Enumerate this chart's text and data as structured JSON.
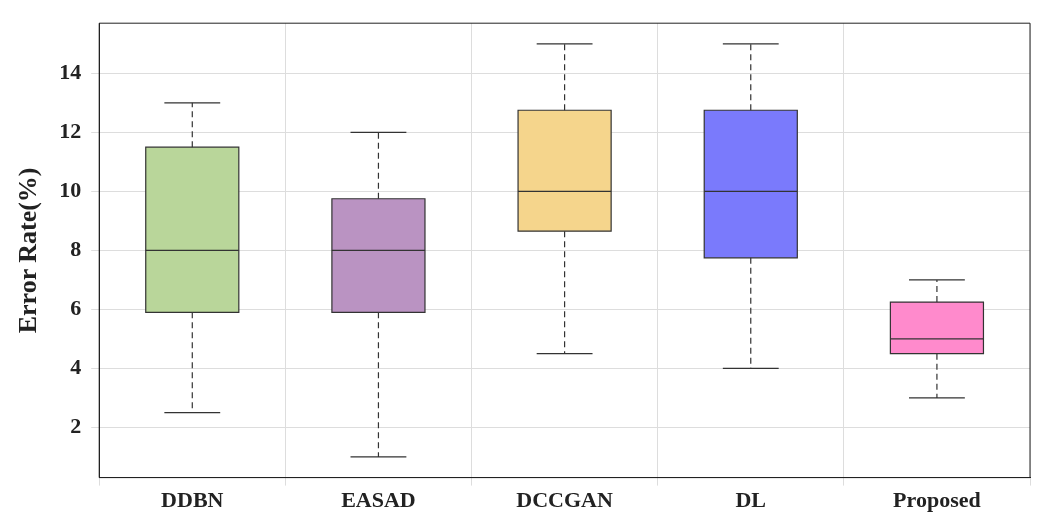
{
  "chart_data": {
    "type": "box",
    "ylabel": "Error Rate(%)",
    "categories": [
      "DDBN",
      "EASAD",
      "DCCGAN",
      "DL",
      "Proposed"
    ],
    "boxes": [
      {
        "low": 2.5,
        "q1": 5.9,
        "median": 8,
        "q3": 11.5,
        "high": 13
      },
      {
        "low": 1,
        "q1": 5.9,
        "median": 8,
        "q3": 9.75,
        "high": 12
      },
      {
        "low": 4.5,
        "q1": 8.65,
        "median": 10,
        "q3": 12.75,
        "high": 15
      },
      {
        "low": 4,
        "q1": 7.75,
        "median": 10,
        "q3": 12.75,
        "high": 15
      },
      {
        "low": 3,
        "q1": 4.5,
        "median": 5,
        "q3": 6.25,
        "high": 7
      }
    ],
    "colors": [
      "#b9d69a",
      "#ba93c2",
      "#f5d58c",
      "#7a7afc",
      "#ff8acc"
    ],
    "ylim": [
      0.3,
      15.7
    ],
    "yticks": [
      2,
      4,
      6,
      8,
      10,
      12,
      14
    ],
    "grid": true,
    "legend": false
  }
}
